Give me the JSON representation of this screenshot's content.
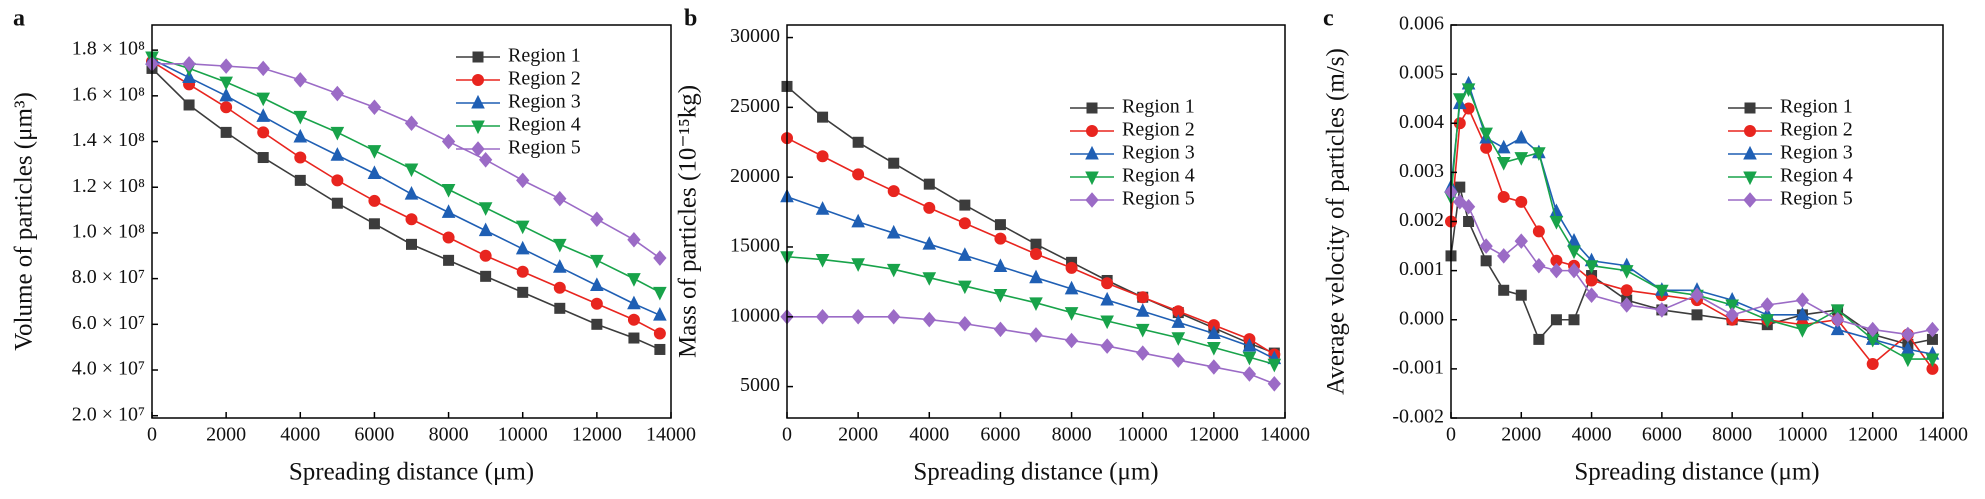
{
  "chart_data": [
    {
      "type": "line",
      "panel_label": "a",
      "x_label": "Spreading distance (μm)",
      "y_label": "Volume of particles (μm³)",
      "xlim": [
        0,
        14000
      ],
      "xticks": [
        0,
        2000,
        4000,
        6000,
        8000,
        10000,
        12000,
        14000
      ],
      "ylim": [
        19000000.0,
        191000000.0
      ],
      "yticks": [
        {
          "value": 20000000.0,
          "label": "2.0 × 10⁷"
        },
        {
          "value": 40000000.0,
          "label": "4.0 × 10⁷"
        },
        {
          "value": 60000000.0,
          "label": "6.0 × 10⁷"
        },
        {
          "value": 80000000.0,
          "label": "8.0 × 10⁷"
        },
        {
          "value": 100000000.0,
          "label": "1.0 × 10⁸"
        },
        {
          "value": 120000000.0,
          "label": "1.2 × 10⁸"
        },
        {
          "value": 140000000.0,
          "label": "1.4 × 10⁸"
        },
        {
          "value": 160000000.0,
          "label": "1.6 × 10⁸"
        },
        {
          "value": 180000000.0,
          "label": "1.8 × 10⁸"
        }
      ],
      "legend": "upper right",
      "x": [
        0,
        1000,
        2000,
        3000,
        4000,
        5000,
        6000,
        7000,
        8000,
        9000,
        10000,
        11000,
        12000,
        13000,
        13700
      ],
      "series": [
        {
          "name": "Region 1",
          "color": "#3c3c3c",
          "marker": "square",
          "values": [
            172000000.0,
            156000000.0,
            144000000.0,
            133000000.0,
            123000000.0,
            113000000.0,
            104000000.0,
            95000000.0,
            88000000.0,
            81000000.0,
            74000000.0,
            67000000.0,
            60000000.0,
            54000000.0,
            49000000.0
          ]
        },
        {
          "name": "Region 2",
          "color": "#e8251f",
          "marker": "circle",
          "values": [
            175000000.0,
            165000000.0,
            155000000.0,
            144000000.0,
            133000000.0,
            123000000.0,
            114000000.0,
            106000000.0,
            98000000.0,
            90000000.0,
            83000000.0,
            76000000.0,
            69000000.0,
            62000000.0,
            56000000.0
          ]
        },
        {
          "name": "Region 3",
          "color": "#1f5fb4",
          "marker": "triangle-up",
          "values": [
            176000000.0,
            168000000.0,
            160000000.0,
            151000000.0,
            142000000.0,
            134000000.0,
            126000000.0,
            117000000.0,
            109000000.0,
            101000000.0,
            93000000.0,
            85000000.0,
            77000000.0,
            69000000.0,
            64000000.0
          ]
        },
        {
          "name": "Region 4",
          "color": "#18a34a",
          "marker": "triangle-down",
          "values": [
            177000000.0,
            172000000.0,
            166000000.0,
            159000000.0,
            151000000.0,
            144000000.0,
            136000000.0,
            128000000.0,
            119000000.0,
            111000000.0,
            103000000.0,
            95000000.0,
            88000000.0,
            80000000.0,
            74000000.0
          ]
        },
        {
          "name": "Region 5",
          "color": "#9b6bc6",
          "marker": "diamond",
          "values": [
            174000000.0,
            174000000.0,
            173000000.0,
            172000000.0,
            167000000.0,
            161000000.0,
            155000000.0,
            148000000.0,
            140000000.0,
            132000000.0,
            123000000.0,
            115000000.0,
            106000000.0,
            97000000.0,
            89000000.0
          ]
        }
      ]
    },
    {
      "type": "line",
      "panel_label": "b",
      "x_label": "Spreading distance (μm)",
      "y_label": "Mass of particles (10⁻¹⁵kg)",
      "xlim": [
        0,
        14000
      ],
      "xticks": [
        0,
        2000,
        4000,
        6000,
        8000,
        10000,
        12000,
        14000
      ],
      "ylim": [
        2750,
        30900
      ],
      "yticks": [
        5000,
        10000,
        15000,
        20000,
        25000,
        30000
      ],
      "legend": "right",
      "x": [
        0,
        1000,
        2000,
        3000,
        4000,
        5000,
        6000,
        7000,
        8000,
        9000,
        10000,
        11000,
        12000,
        13000,
        13700
      ],
      "series": [
        {
          "name": "Region 1",
          "color": "#3c3c3c",
          "marker": "square",
          "values": [
            26500,
            24300,
            22500,
            21000,
            19500,
            18000,
            16600,
            15200,
            13900,
            12600,
            11400,
            10300,
            9200,
            8100,
            7400
          ]
        },
        {
          "name": "Region 2",
          "color": "#e8251f",
          "marker": "circle",
          "values": [
            22800,
            21500,
            20200,
            19000,
            17800,
            16700,
            15600,
            14500,
            13500,
            12400,
            11400,
            10400,
            9400,
            8400,
            7300
          ]
        },
        {
          "name": "Region 3",
          "color": "#1f5fb4",
          "marker": "triangle-up",
          "values": [
            18600,
            17700,
            16800,
            16000,
            15200,
            14400,
            13600,
            12800,
            12000,
            11200,
            10400,
            9600,
            8800,
            7900,
            7000
          ]
        },
        {
          "name": "Region 4",
          "color": "#18a34a",
          "marker": "triangle-down",
          "values": [
            14300,
            14100,
            13800,
            13400,
            12800,
            12200,
            11600,
            11000,
            10300,
            9700,
            9100,
            8500,
            7800,
            7100,
            6600
          ]
        },
        {
          "name": "Region 5",
          "color": "#9b6bc6",
          "marker": "diamond",
          "values": [
            10000,
            10000,
            10000,
            10000,
            9800,
            9500,
            9100,
            8700,
            8300,
            7900,
            7400,
            6900,
            6400,
            5900,
            5200
          ]
        }
      ]
    },
    {
      "type": "line",
      "panel_label": "c",
      "x_label": "Spreading distance (μm)",
      "y_label": "Average velocity of particles (m/s)",
      "xlim": [
        0,
        14000
      ],
      "xticks": [
        0,
        2000,
        4000,
        6000,
        8000,
        10000,
        12000,
        14000
      ],
      "ylim": [
        -0.002,
        0.006
      ],
      "yticks": [
        -0.002,
        -0.001,
        {
          "value": 0,
          "label": "0.000"
        },
        0.001,
        0.002,
        0.003,
        0.004,
        0.005,
        0.006
      ],
      "legend": "right",
      "x": [
        0,
        250,
        500,
        1000,
        1500,
        2000,
        2500,
        3000,
        3500,
        4000,
        5000,
        6000,
        7000,
        8000,
        9000,
        10000,
        11000,
        12000,
        13000,
        13700
      ],
      "series": [
        {
          "name": "Region 1",
          "color": "#3c3c3c",
          "marker": "square",
          "values": [
            0.0013,
            0.0027,
            0.002,
            0.0012,
            0.0006,
            0.0005,
            -0.0004,
            0.0,
            0.0,
            0.0009,
            0.0004,
            0.0002,
            0.0001,
            0.0,
            -0.0001,
            0.0001,
            0.0002,
            -0.0003,
            -0.0005,
            -0.0004
          ]
        },
        {
          "name": "Region 2",
          "color": "#e8251f",
          "marker": "circle",
          "values": [
            0.002,
            0.004,
            0.0043,
            0.0035,
            0.0025,
            0.0024,
            0.0018,
            0.0012,
            0.0011,
            0.0008,
            0.0006,
            0.0005,
            0.0004,
            0.0,
            0.0,
            -0.0001,
            0.0,
            -0.0009,
            -0.0003,
            -0.001
          ]
        },
        {
          "name": "Region 3",
          "color": "#1f5fb4",
          "marker": "triangle-up",
          "values": [
            0.0027,
            0.0044,
            0.0048,
            0.0037,
            0.0035,
            0.0037,
            0.0034,
            0.0022,
            0.0016,
            0.0012,
            0.0011,
            0.0006,
            0.0006,
            0.0004,
            0.0001,
            0.0001,
            -0.0002,
            -0.0004,
            -0.0006,
            -0.0007
          ]
        },
        {
          "name": "Region 4",
          "color": "#18a34a",
          "marker": "triangle-down",
          "values": [
            0.0025,
            0.0045,
            0.0047,
            0.0038,
            0.0032,
            0.0033,
            0.0034,
            0.002,
            0.0014,
            0.0011,
            0.001,
            0.0006,
            0.0005,
            0.0003,
            0.0,
            -0.0002,
            0.0002,
            -0.0004,
            -0.0008,
            -0.0008
          ]
        },
        {
          "name": "Region 5",
          "color": "#9b6bc6",
          "marker": "diamond",
          "values": [
            0.0026,
            0.0024,
            0.0023,
            0.0015,
            0.0013,
            0.0016,
            0.0011,
            0.001,
            0.001,
            0.0005,
            0.0003,
            0.0002,
            0.0005,
            0.0001,
            0.0003,
            0.0004,
            0.0,
            -0.0002,
            -0.0003,
            -0.0002
          ]
        }
      ]
    }
  ]
}
